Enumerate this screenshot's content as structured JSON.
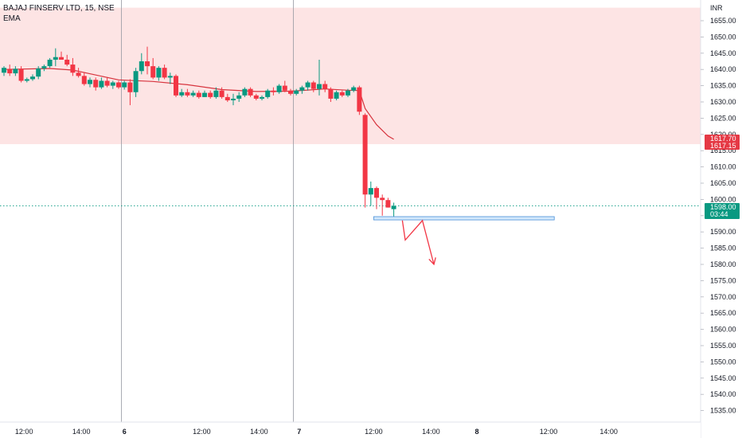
{
  "header": {
    "symbol": "BAJAJ FINSERV LTD, 15, NSE",
    "indicator": "EMA"
  },
  "axis": {
    "currency": "INR",
    "price_badges": [
      {
        "label": "1617.70",
        "color": "#e53945"
      },
      {
        "label": "1617.15",
        "color": "#e53945"
      },
      {
        "label": "1598.00",
        "sublabel": "03:44",
        "color": "#089981"
      }
    ]
  },
  "colors": {
    "up": "#089981",
    "down": "#f23645",
    "ema": "#d7343e",
    "zone": "#fde4e4",
    "box_fill": "#d2e8fb",
    "box_stroke": "#4a90d9",
    "arrow": "#f23645"
  },
  "chart_data": {
    "type": "candlestick",
    "title": "BAJAJ FINSERV LTD, 15, NSE",
    "ylabel": "INR",
    "ylim": [
      1532,
      1659
    ],
    "y_ticks": [
      "1655.00",
      "1650.00",
      "1645.00",
      "1640.00",
      "1635.00",
      "1630.00",
      "1625.00",
      "1620.00",
      "1615.00",
      "1610.00",
      "1605.00",
      "1600.00",
      "1595.00",
      "1590.00",
      "1585.00",
      "1580.00",
      "1575.00",
      "1570.00",
      "1565.00",
      "1560.00",
      "1555.00",
      "1550.00",
      "1545.00",
      "1540.00",
      "1535.00"
    ],
    "x_ticks": [
      "12:00",
      "14:00",
      "6",
      "12:00",
      "14:00",
      "7",
      "12:00",
      "14:00",
      "8",
      "12:00",
      "14:00"
    ],
    "candles": [
      {
        "o": 1639.0,
        "h": 1641.0,
        "l": 1638.0,
        "c": 1640.5
      },
      {
        "o": 1640.0,
        "h": 1641.5,
        "l": 1638.0,
        "c": 1638.8
      },
      {
        "o": 1638.8,
        "h": 1641.0,
        "l": 1638.0,
        "c": 1640.2
      },
      {
        "o": 1640.2,
        "h": 1641.0,
        "l": 1636.0,
        "c": 1636.5
      },
      {
        "o": 1636.5,
        "h": 1637.5,
        "l": 1636.0,
        "c": 1637.0
      },
      {
        "o": 1637.0,
        "h": 1638.5,
        "l": 1636.5,
        "c": 1637.8
      },
      {
        "o": 1637.8,
        "h": 1641.0,
        "l": 1637.0,
        "c": 1640.3
      },
      {
        "o": 1640.3,
        "h": 1641.5,
        "l": 1639.5,
        "c": 1641.0
      },
      {
        "o": 1641.0,
        "h": 1643.5,
        "l": 1640.5,
        "c": 1643.0
      },
      {
        "o": 1643.0,
        "h": 1646.5,
        "l": 1641.0,
        "c": 1643.8
      },
      {
        "o": 1643.8,
        "h": 1645.5,
        "l": 1643.0,
        "c": 1643.0
      },
      {
        "o": 1643.0,
        "h": 1644.5,
        "l": 1641.0,
        "c": 1641.5
      },
      {
        "o": 1641.5,
        "h": 1643.5,
        "l": 1638.0,
        "c": 1639.0
      },
      {
        "o": 1639.0,
        "h": 1640.5,
        "l": 1637.5,
        "c": 1638.0
      },
      {
        "o": 1638.0,
        "h": 1639.0,
        "l": 1635.0,
        "c": 1635.5
      },
      {
        "o": 1635.5,
        "h": 1637.5,
        "l": 1634.5,
        "c": 1636.8
      },
      {
        "o": 1636.8,
        "h": 1637.5,
        "l": 1633.5,
        "c": 1634.5
      },
      {
        "o": 1634.5,
        "h": 1637.5,
        "l": 1634.0,
        "c": 1636.5
      },
      {
        "o": 1636.5,
        "h": 1637.5,
        "l": 1634.5,
        "c": 1635.0
      },
      {
        "o": 1635.0,
        "h": 1636.5,
        "l": 1634.0,
        "c": 1636.0
      },
      {
        "o": 1636.0,
        "h": 1636.5,
        "l": 1634.0,
        "c": 1634.5
      },
      {
        "o": 1634.5,
        "h": 1636.5,
        "l": 1633.8,
        "c": 1636.0
      },
      {
        "o": 1636.0,
        "h": 1637.0,
        "l": 1629.0,
        "c": 1633.0
      },
      {
        "o": 1633.0,
        "h": 1640.5,
        "l": 1631.5,
        "c": 1639.5
      },
      {
        "o": 1639.5,
        "h": 1645.0,
        "l": 1638.5,
        "c": 1642.5
      },
      {
        "o": 1642.5,
        "h": 1647.0,
        "l": 1638.5,
        "c": 1641.0
      },
      {
        "o": 1641.0,
        "h": 1643.5,
        "l": 1637.0,
        "c": 1637.5
      },
      {
        "o": 1637.5,
        "h": 1641.0,
        "l": 1636.5,
        "c": 1640.5
      },
      {
        "o": 1640.5,
        "h": 1641.5,
        "l": 1637.0,
        "c": 1637.5
      },
      {
        "o": 1637.5,
        "h": 1639.0,
        "l": 1635.5,
        "c": 1638.0
      },
      {
        "o": 1638.0,
        "h": 1638.5,
        "l": 1631.5,
        "c": 1632.0
      },
      {
        "o": 1632.0,
        "h": 1634.0,
        "l": 1631.5,
        "c": 1633.0
      },
      {
        "o": 1633.0,
        "h": 1634.0,
        "l": 1631.5,
        "c": 1632.0
      },
      {
        "o": 1632.0,
        "h": 1633.5,
        "l": 1631.5,
        "c": 1632.8
      },
      {
        "o": 1632.8,
        "h": 1633.5,
        "l": 1631.0,
        "c": 1631.5
      },
      {
        "o": 1631.5,
        "h": 1633.5,
        "l": 1631.5,
        "c": 1632.8
      },
      {
        "o": 1632.8,
        "h": 1633.5,
        "l": 1631.0,
        "c": 1631.5
      },
      {
        "o": 1631.5,
        "h": 1634.5,
        "l": 1631.0,
        "c": 1633.5
      },
      {
        "o": 1633.5,
        "h": 1634.5,
        "l": 1631.0,
        "c": 1631.5
      },
      {
        "o": 1631.5,
        "h": 1632.5,
        "l": 1630.0,
        "c": 1630.5
      },
      {
        "o": 1630.5,
        "h": 1632.5,
        "l": 1629.0,
        "c": 1631.0
      },
      {
        "o": 1631.0,
        "h": 1633.0,
        "l": 1630.0,
        "c": 1632.0
      },
      {
        "o": 1632.0,
        "h": 1634.5,
        "l": 1631.5,
        "c": 1634.0
      },
      {
        "o": 1634.0,
        "h": 1634.5,
        "l": 1631.5,
        "c": 1632.0
      },
      {
        "o": 1632.0,
        "h": 1632.5,
        "l": 1630.5,
        "c": 1631.0
      },
      {
        "o": 1631.0,
        "h": 1632.0,
        "l": 1630.5,
        "c": 1631.5
      },
      {
        "o": 1631.5,
        "h": 1634.0,
        "l": 1631.0,
        "c": 1633.5
      },
      {
        "o": 1633.5,
        "h": 1634.5,
        "l": 1632.0,
        "c": 1633.0
      },
      {
        "o": 1633.0,
        "h": 1635.5,
        "l": 1632.5,
        "c": 1635.0
      },
      {
        "o": 1635.0,
        "h": 1636.5,
        "l": 1633.0,
        "c": 1633.5
      },
      {
        "o": 1633.5,
        "h": 1634.0,
        "l": 1632.0,
        "c": 1632.5
      },
      {
        "o": 1632.5,
        "h": 1634.0,
        "l": 1632.0,
        "c": 1633.5
      },
      {
        "o": 1633.5,
        "h": 1635.0,
        "l": 1632.5,
        "c": 1634.5
      },
      {
        "o": 1634.5,
        "h": 1636.5,
        "l": 1633.5,
        "c": 1636.0
      },
      {
        "o": 1636.0,
        "h": 1636.5,
        "l": 1633.0,
        "c": 1634.0
      },
      {
        "o": 1634.0,
        "h": 1643.0,
        "l": 1632.0,
        "c": 1635.5
      },
      {
        "o": 1635.5,
        "h": 1636.5,
        "l": 1633.0,
        "c": 1634.0
      },
      {
        "o": 1634.0,
        "h": 1634.5,
        "l": 1630.0,
        "c": 1631.0
      },
      {
        "o": 1631.0,
        "h": 1633.5,
        "l": 1630.5,
        "c": 1633.0
      },
      {
        "o": 1633.0,
        "h": 1633.5,
        "l": 1631.5,
        "c": 1632.0
      },
      {
        "o": 1632.0,
        "h": 1634.0,
        "l": 1631.5,
        "c": 1633.5
      },
      {
        "o": 1633.5,
        "h": 1635.0,
        "l": 1633.0,
        "c": 1634.5
      },
      {
        "o": 1634.5,
        "h": 1635.0,
        "l": 1626.0,
        "c": 1627.0
      },
      {
        "o": 1626.0,
        "h": 1626.5,
        "l": 1597.5,
        "c": 1601.5
      },
      {
        "o": 1601.5,
        "h": 1605.5,
        "l": 1598.0,
        "c": 1603.5
      },
      {
        "o": 1603.5,
        "h": 1604.0,
        "l": 1597.0,
        "c": 1600.5
      },
      {
        "o": 1600.5,
        "h": 1601.5,
        "l": 1595.0,
        "c": 1599.8
      },
      {
        "o": 1599.8,
        "h": 1600.5,
        "l": 1597.5,
        "c": 1597.5
      },
      {
        "o": 1597.0,
        "h": 1599.0,
        "l": 1594.5,
        "c": 1598.0
      }
    ],
    "ema": [
      [
        0,
        1640.0
      ],
      [
        8,
        1640.3
      ],
      [
        12,
        1639.8
      ],
      [
        20,
        1636.8
      ],
      [
        26,
        1636.3
      ],
      [
        32,
        1635.3
      ],
      [
        38,
        1633.8
      ],
      [
        44,
        1633.2
      ],
      [
        50,
        1633.3
      ],
      [
        56,
        1634.0
      ],
      [
        60,
        1633.6
      ],
      [
        62,
        1633.5
      ],
      [
        63,
        1628.0
      ],
      [
        65,
        1623.0
      ],
      [
        67,
        1619.5
      ],
      [
        68,
        1618.5
      ]
    ],
    "annotations": [
      {
        "type": "rectangle",
        "x_from": 64.5,
        "x_to": 96.0,
        "y_from": 1593.7,
        "y_to": 1594.7
      },
      {
        "type": "zone",
        "y_from": 1617.0,
        "y_to": 1659.0
      },
      {
        "type": "path",
        "points": [
          [
            69.5,
            1593.5
          ],
          [
            70.0,
            1587.5
          ],
          [
            73.0,
            1593.5
          ],
          [
            75.0,
            1580.0
          ]
        ]
      }
    ],
    "time_x_ticks": [
      {
        "label": "12:00",
        "x": 3.5
      },
      {
        "label": "14:00",
        "x": 13.5
      },
      {
        "label": "6",
        "x": 21.0
      },
      {
        "label": "12:00",
        "x": 34.5
      },
      {
        "label": "14:00",
        "x": 44.5
      },
      {
        "label": "7",
        "x": 51.5
      },
      {
        "label": "12:00",
        "x": 64.5
      },
      {
        "label": "14:00",
        "x": 74.5
      },
      {
        "label": "8",
        "x": 82.5
      },
      {
        "label": "12:00",
        "x": 95.0
      },
      {
        "label": "14:00",
        "x": 105.5
      }
    ],
    "session_lines": [
      20.5,
      50.5
    ],
    "last_price": 1598.0
  }
}
